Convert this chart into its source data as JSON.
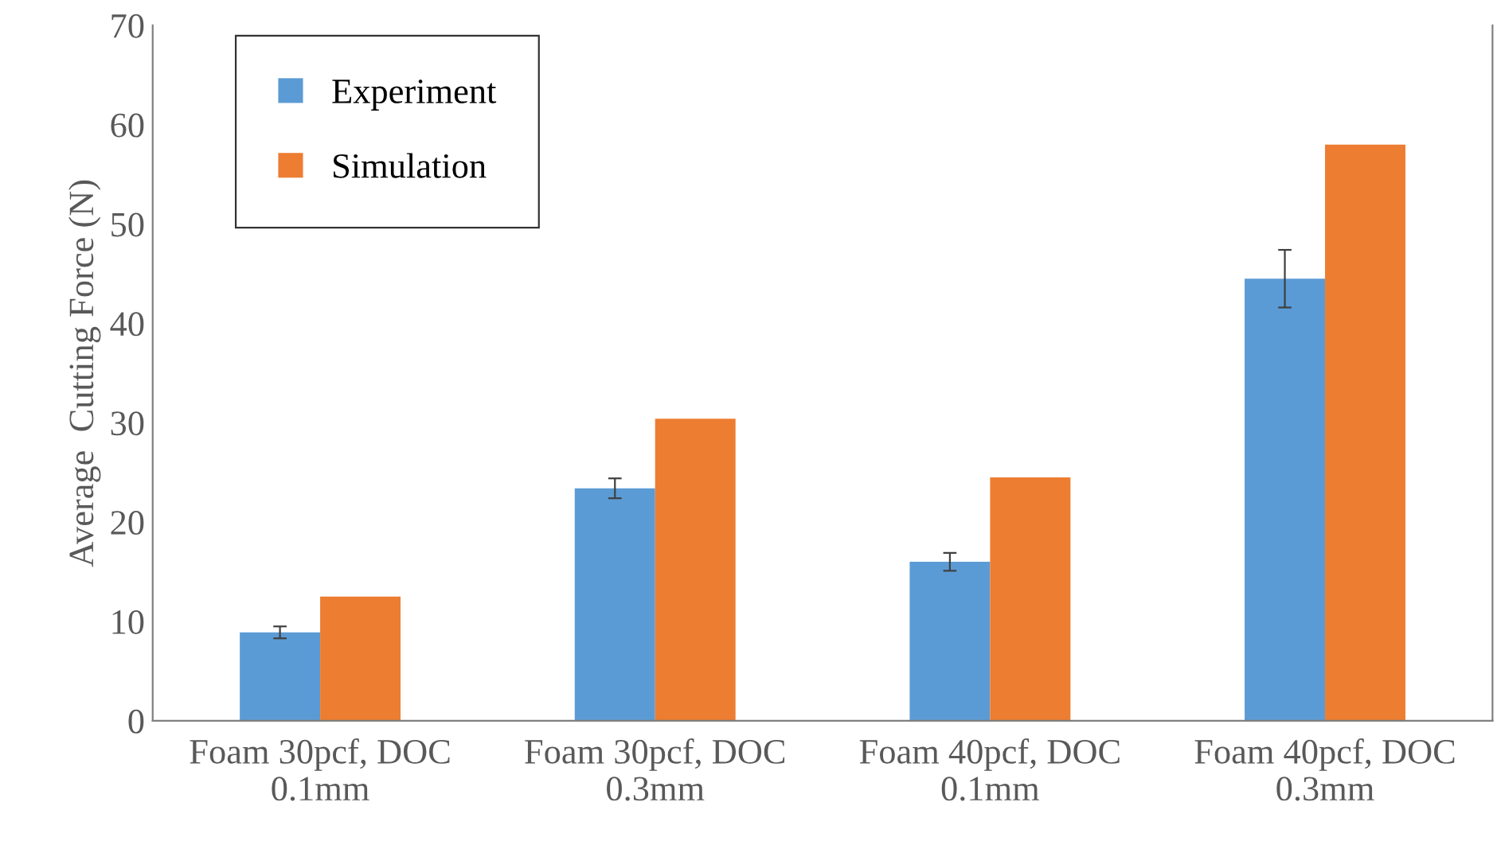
{
  "chart_data": {
    "type": "bar",
    "ylabel": "Average  Cutting Force (N)",
    "categories": [
      "Foam 30pcf, DOC\n0.1mm",
      "Foam 30pcf, DOC\n0.3mm",
      "Foam 40pcf, DOC\n0.1mm",
      "Foam 40pcf, DOC\n0.3mm"
    ],
    "series": [
      {
        "name": "Experiment",
        "color": "#5b9bd5",
        "values": [
          8.9,
          23.4,
          16.0,
          44.5
        ],
        "errors": [
          0.6,
          1.0,
          0.9,
          2.9
        ]
      },
      {
        "name": "Simulation",
        "color": "#ed7d31",
        "values": [
          12.5,
          30.4,
          24.5,
          58.0
        ]
      }
    ],
    "ylim": [
      0,
      70
    ],
    "yticks": [
      0,
      10,
      20,
      30,
      40,
      50,
      60,
      70
    ],
    "grid": false,
    "legend": "top left"
  }
}
